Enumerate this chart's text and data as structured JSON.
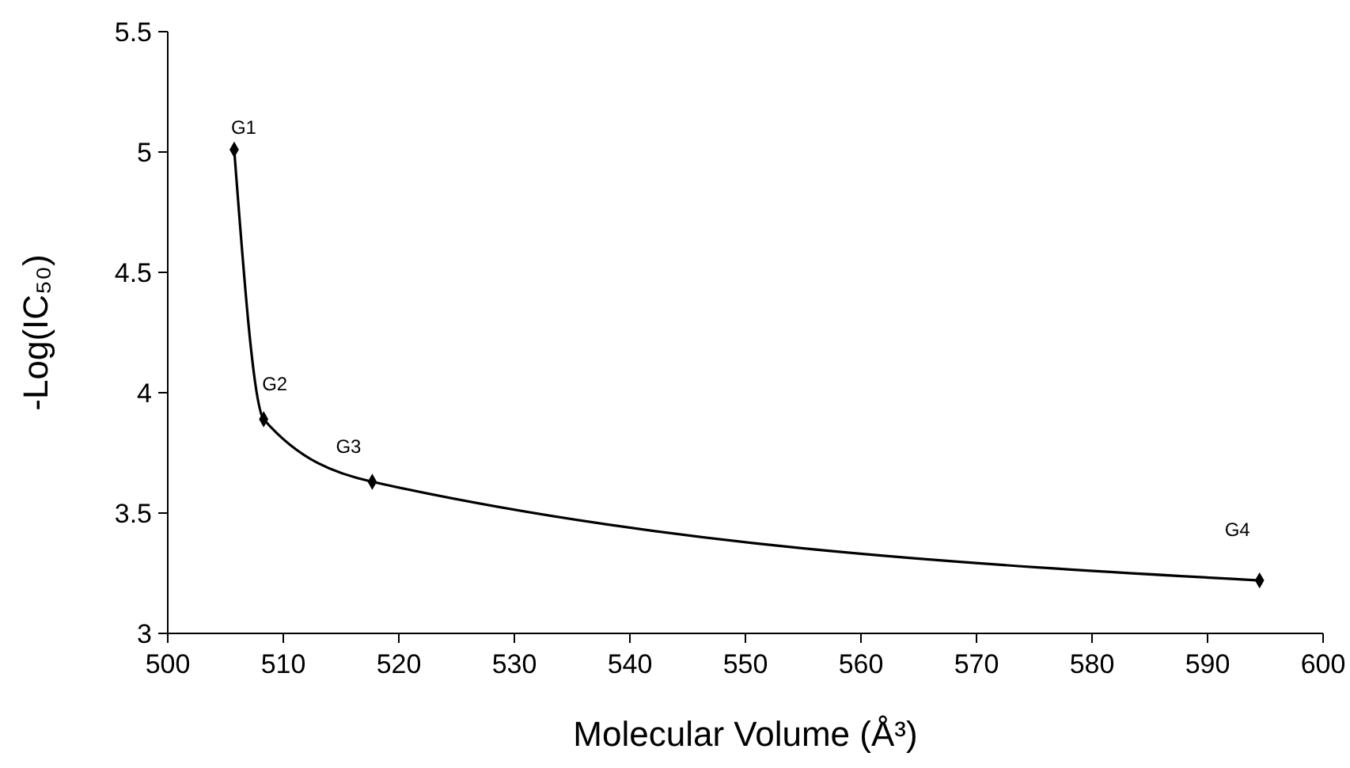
{
  "chart_data": {
    "type": "line",
    "xlabel": "Molecular Volume (Å³)",
    "ylabel": "-Log(IC₅₀)",
    "x": [
      505.75,
      508.3,
      517.7,
      594.5
    ],
    "series": [
      {
        "color": "#000000",
        "values": [
          5.01,
          3.89,
          3.63,
          3.22
        ]
      }
    ],
    "xlim": [
      500,
      600
    ],
    "xticks": [
      500,
      510,
      520,
      530,
      540,
      550,
      560,
      570,
      580,
      590,
      600
    ],
    "ylim": [
      3,
      5.5
    ],
    "yticks": [
      3,
      3.5,
      4,
      4.5,
      5,
      5.5
    ],
    "marker": "diamond",
    "line_style": "solid",
    "grid": false,
    "annotations": [
      {
        "text": "G1",
        "x": 505.75,
        "y": 5.01
      },
      {
        "text": "G2",
        "x": 508.3,
        "y": 3.89
      },
      {
        "text": "G3",
        "x": 517.7,
        "y": 3.63
      },
      {
        "text": "G4",
        "x": 594.5,
        "y": 3.22
      }
    ]
  }
}
